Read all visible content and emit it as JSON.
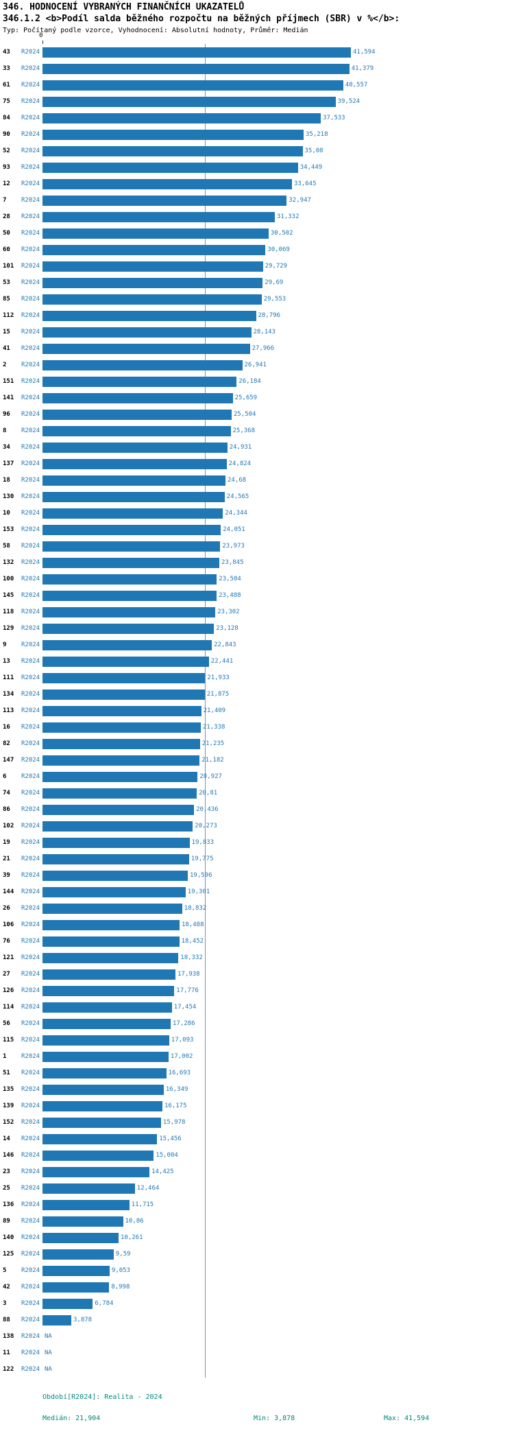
{
  "header": {
    "title": "346. HODNOCENÍ VYBRANÝCH FINANČNÍCH UKAZATELŮ",
    "subtitle": "346.1.2 <b>Podíl salda běžného rozpočtu na běžných příjmech (SBR) v %</b>:",
    "meta": "Typ: Počítaný podle vzorce, Vyhodnocení: Absolutní hodnoty, Průměr: Medián"
  },
  "axis": {
    "zero_label": "0"
  },
  "footer": {
    "period": "Období[R2024]: Realita - 2024",
    "median": "Medián: 21,904",
    "min": "Min: 3,878",
    "max": "Max: 41,594"
  },
  "colors": {
    "bar": "#1f77b4",
    "accent_text": "#1f77b4",
    "footer_text": "#00897b"
  },
  "chart_data": {
    "type": "bar",
    "orientation": "horizontal",
    "title": "346.1.2 Podíl salda běžného rozpočtu na běžných příjmech (SBR) v %",
    "period_label": "R2024",
    "xlabel": "",
    "ylabel": "",
    "xlim": [
      0,
      41.594
    ],
    "median_value": 21.904,
    "min_value": 3.878,
    "max_value": 41.594,
    "grid": false,
    "legend": "none",
    "rows": [
      {
        "category": "43",
        "label": "41,594",
        "value": 41.594
      },
      {
        "category": "33",
        "label": "41,379",
        "value": 41.379
      },
      {
        "category": "61",
        "label": "40,557",
        "value": 40.557
      },
      {
        "category": "75",
        "label": "39,524",
        "value": 39.524
      },
      {
        "category": "84",
        "label": "37,533",
        "value": 37.533
      },
      {
        "category": "90",
        "label": "35,218",
        "value": 35.218
      },
      {
        "category": "52",
        "label": "35,08",
        "value": 35.08
      },
      {
        "category": "93",
        "label": "34,449",
        "value": 34.449
      },
      {
        "category": "12",
        "label": "33,645",
        "value": 33.645
      },
      {
        "category": "7",
        "label": "32,947",
        "value": 32.947
      },
      {
        "category": "28",
        "label": "31,332",
        "value": 31.332
      },
      {
        "category": "50",
        "label": "30,502",
        "value": 30.502
      },
      {
        "category": "60",
        "label": "30,069",
        "value": 30.069
      },
      {
        "category": "101",
        "label": "29,729",
        "value": 29.729
      },
      {
        "category": "53",
        "label": "29,69",
        "value": 29.69
      },
      {
        "category": "85",
        "label": "29,553",
        "value": 29.553
      },
      {
        "category": "112",
        "label": "28,796",
        "value": 28.796
      },
      {
        "category": "15",
        "label": "28,143",
        "value": 28.143
      },
      {
        "category": "41",
        "label": "27,966",
        "value": 27.966
      },
      {
        "category": "2",
        "label": "26,941",
        "value": 26.941
      },
      {
        "category": "151",
        "label": "26,184",
        "value": 26.184
      },
      {
        "category": "141",
        "label": "25,659",
        "value": 25.659
      },
      {
        "category": "96",
        "label": "25,504",
        "value": 25.504
      },
      {
        "category": "8",
        "label": "25,368",
        "value": 25.368
      },
      {
        "category": "34",
        "label": "24,931",
        "value": 24.931
      },
      {
        "category": "137",
        "label": "24,824",
        "value": 24.824
      },
      {
        "category": "18",
        "label": "24,68",
        "value": 24.68
      },
      {
        "category": "130",
        "label": "24,565",
        "value": 24.565
      },
      {
        "category": "10",
        "label": "24,344",
        "value": 24.344
      },
      {
        "category": "153",
        "label": "24,051",
        "value": 24.051
      },
      {
        "category": "58",
        "label": "23,973",
        "value": 23.973
      },
      {
        "category": "132",
        "label": "23,845",
        "value": 23.845
      },
      {
        "category": "100",
        "label": "23,504",
        "value": 23.504
      },
      {
        "category": "145",
        "label": "23,488",
        "value": 23.488
      },
      {
        "category": "118",
        "label": "23,302",
        "value": 23.302
      },
      {
        "category": "129",
        "label": "23,128",
        "value": 23.128
      },
      {
        "category": "9",
        "label": "22,843",
        "value": 22.843
      },
      {
        "category": "13",
        "label": "22,441",
        "value": 22.441
      },
      {
        "category": "111",
        "label": "21,933",
        "value": 21.933
      },
      {
        "category": "134",
        "label": "21,875",
        "value": 21.875
      },
      {
        "category": "113",
        "label": "21,409",
        "value": 21.409
      },
      {
        "category": "16",
        "label": "21,338",
        "value": 21.338
      },
      {
        "category": "82",
        "label": "21,235",
        "value": 21.235
      },
      {
        "category": "147",
        "label": "21,182",
        "value": 21.182
      },
      {
        "category": "6",
        "label": "20,927",
        "value": 20.927
      },
      {
        "category": "74",
        "label": "20,81",
        "value": 20.81
      },
      {
        "category": "86",
        "label": "20,436",
        "value": 20.436
      },
      {
        "category": "102",
        "label": "20,273",
        "value": 20.273
      },
      {
        "category": "19",
        "label": "19,833",
        "value": 19.833
      },
      {
        "category": "21",
        "label": "19,775",
        "value": 19.775
      },
      {
        "category": "39",
        "label": "19,596",
        "value": 19.596
      },
      {
        "category": "144",
        "label": "19,301",
        "value": 19.301
      },
      {
        "category": "26",
        "label": "18,832",
        "value": 18.832
      },
      {
        "category": "106",
        "label": "18,488",
        "value": 18.488
      },
      {
        "category": "76",
        "label": "18,452",
        "value": 18.452
      },
      {
        "category": "121",
        "label": "18,332",
        "value": 18.332
      },
      {
        "category": "27",
        "label": "17,938",
        "value": 17.938
      },
      {
        "category": "126",
        "label": "17,776",
        "value": 17.776
      },
      {
        "category": "114",
        "label": "17,454",
        "value": 17.454
      },
      {
        "category": "56",
        "label": "17,286",
        "value": 17.286
      },
      {
        "category": "115",
        "label": "17,093",
        "value": 17.093
      },
      {
        "category": "1",
        "label": "17,002",
        "value": 17.002
      },
      {
        "category": "51",
        "label": "16,693",
        "value": 16.693
      },
      {
        "category": "135",
        "label": "16,349",
        "value": 16.349
      },
      {
        "category": "139",
        "label": "16,175",
        "value": 16.175
      },
      {
        "category": "152",
        "label": "15,978",
        "value": 15.978
      },
      {
        "category": "14",
        "label": "15,456",
        "value": 15.456
      },
      {
        "category": "146",
        "label": "15,004",
        "value": 15.004
      },
      {
        "category": "23",
        "label": "14,425",
        "value": 14.425
      },
      {
        "category": "25",
        "label": "12,464",
        "value": 12.464
      },
      {
        "category": "136",
        "label": "11,715",
        "value": 11.715
      },
      {
        "category": "89",
        "label": "10,86",
        "value": 10.86
      },
      {
        "category": "140",
        "label": "10,261",
        "value": 10.261
      },
      {
        "category": "125",
        "label": "9,59",
        "value": 9.59
      },
      {
        "category": "5",
        "label": "9,053",
        "value": 9.053
      },
      {
        "category": "42",
        "label": "8,998",
        "value": 8.998
      },
      {
        "category": "3",
        "label": "6,784",
        "value": 6.784
      },
      {
        "category": "88",
        "label": "3,878",
        "value": 3.878
      },
      {
        "category": "138",
        "label": "NA",
        "value": null
      },
      {
        "category": "11",
        "label": "NA",
        "value": null
      },
      {
        "category": "122",
        "label": "NA",
        "value": null
      }
    ]
  }
}
